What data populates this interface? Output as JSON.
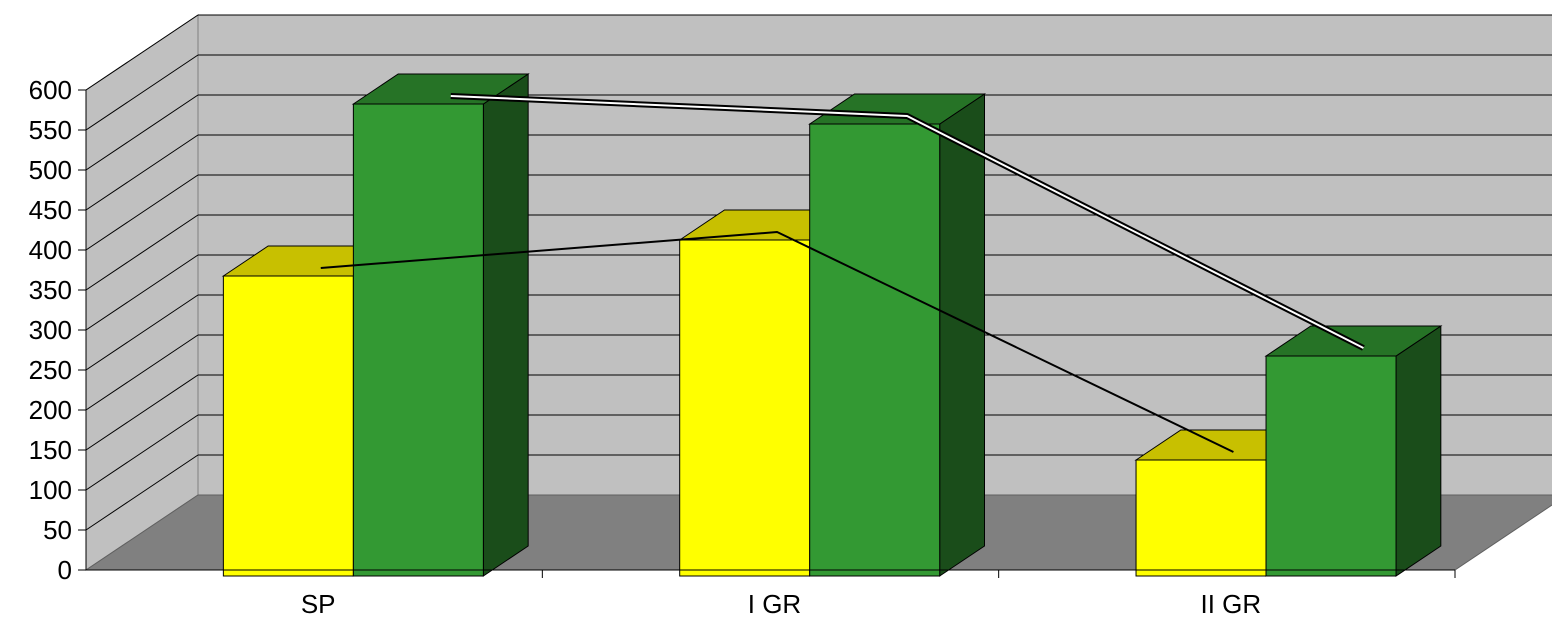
{
  "chart_data": {
    "type": "bar",
    "subtype": "3d-clustered-column",
    "categories": [
      "SP",
      "I GR",
      "II GR"
    ],
    "series": [
      {
        "values": [
          375,
          420,
          145
        ],
        "color": "#ffff00",
        "top_color": "#c8c000",
        "side_color": "#b8b000"
      },
      {
        "values": [
          590,
          565,
          275
        ],
        "color": "#339933",
        "top_color": "#267326",
        "side_color": "#1a4d1a"
      }
    ],
    "trend_lines": [
      {
        "series": 0,
        "style": "single"
      },
      {
        "series": 1,
        "style": "double"
      }
    ],
    "yticks": [
      "0",
      "50",
      "100",
      "150",
      "200",
      "250",
      "300",
      "350",
      "400",
      "450",
      "500",
      "550",
      "600"
    ],
    "ylim": [
      0,
      600
    ],
    "grid": true,
    "wall_color": "#c0c0c0",
    "floor_color": "#808080",
    "title": "",
    "xlabel": "",
    "ylabel": ""
  }
}
